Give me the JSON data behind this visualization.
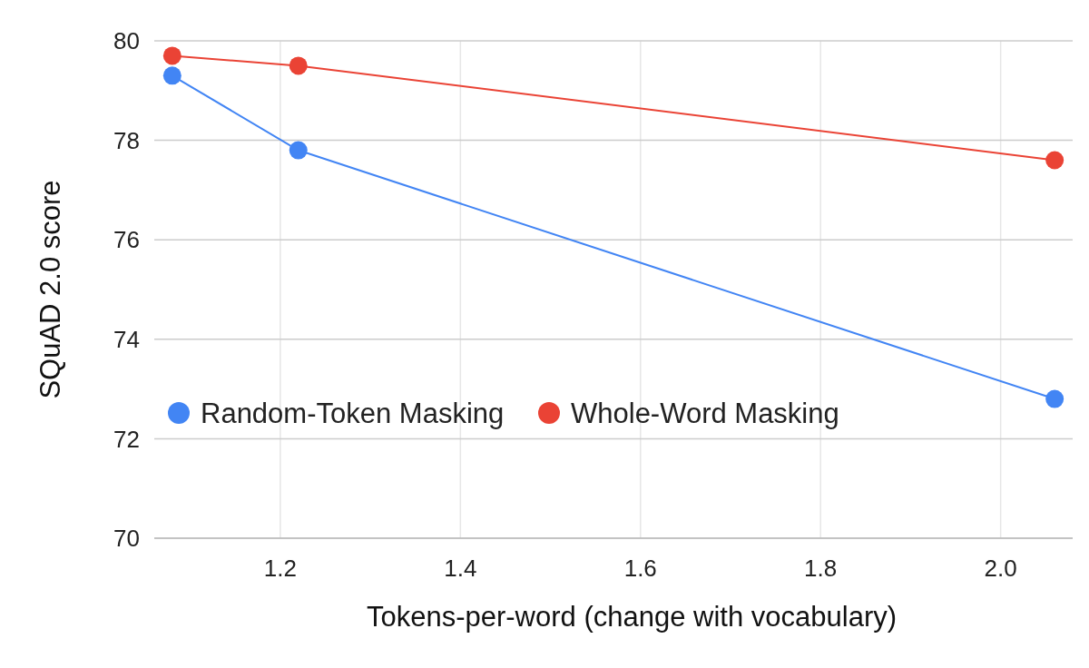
{
  "chart_data": {
    "type": "line",
    "xlabel": "Tokens-per-word (change with vocabulary)",
    "ylabel": "SQuAD 2.0 score",
    "x": [
      1.08,
      1.22,
      2.06
    ],
    "series": [
      {
        "name": "Random-Token Masking",
        "color": "#4285f4",
        "values": [
          79.3,
          77.8,
          72.8
        ]
      },
      {
        "name": "Whole-Word Masking",
        "color": "#ea4335",
        "values": [
          79.7,
          79.5,
          77.6
        ]
      }
    ],
    "xlim": [
      1.06,
      2.08
    ],
    "xticks": [
      {
        "value": 1.2,
        "label": "1.2"
      },
      {
        "value": 1.4,
        "label": "1.4"
      },
      {
        "value": 1.6,
        "label": "1.6"
      },
      {
        "value": 1.8,
        "label": "1.8"
      },
      {
        "value": 2.0,
        "label": "2.0"
      }
    ],
    "ylim": [
      70,
      80
    ],
    "yticks": [
      70,
      72,
      74,
      76,
      78,
      80
    ],
    "grid": true,
    "legend": "bottom left",
    "marker": "circle",
    "line_style": "solid"
  }
}
